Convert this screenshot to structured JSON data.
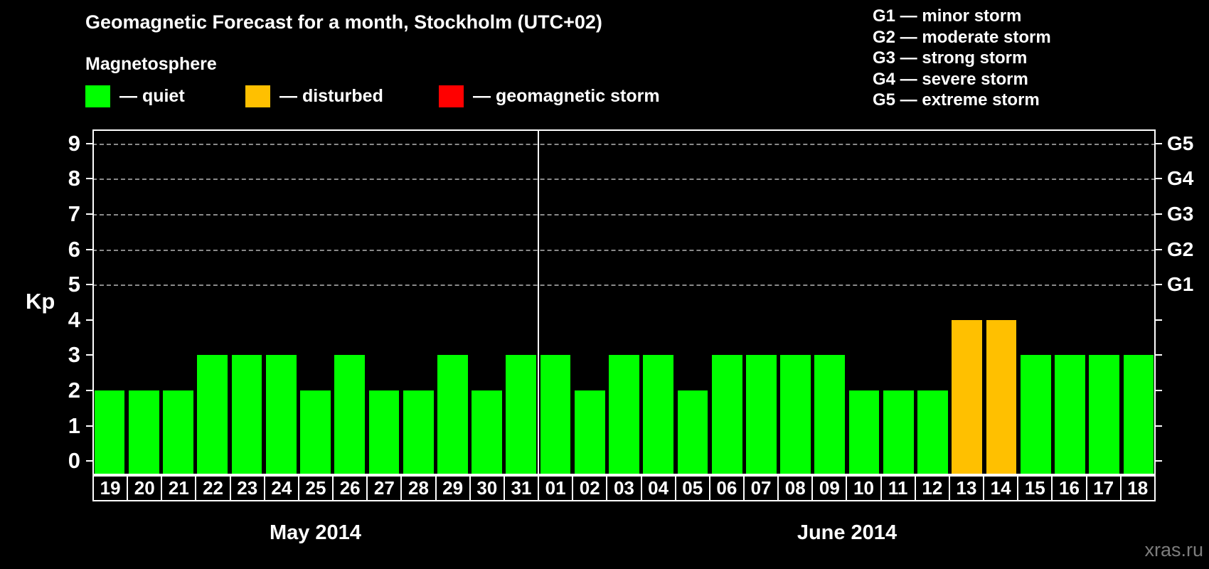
{
  "title": "Geomagnetic Forecast for a month, Stockholm (UTC+02)",
  "legend": {
    "heading": "Magnetosphere",
    "items": [
      {
        "id": "quiet",
        "label": "— quiet",
        "color": "#00FF00"
      },
      {
        "id": "disturbed",
        "label": "— disturbed",
        "color": "#FFC000"
      },
      {
        "id": "storm",
        "label": "— geomagnetic storm",
        "color": "#FF0000"
      }
    ]
  },
  "g_scale_legend": [
    "G1 — minor storm",
    "G2 — moderate storm",
    "G3 — strong storm",
    "G4 — severe storm",
    "G5 — extreme storm"
  ],
  "watermark": "xras.ru",
  "chart_data": {
    "type": "bar",
    "title": "Geomagnetic Forecast for a month, Stockholm (UTC+02)",
    "ylabel": "Kp",
    "ylim": [
      0,
      9
    ],
    "yticks": [
      0,
      1,
      2,
      3,
      4,
      5,
      6,
      7,
      8,
      9
    ],
    "gridlines_at": [
      5,
      6,
      7,
      8,
      9
    ],
    "grid": "dashed horizontal at Kp 5-9 only",
    "legend_position": "top",
    "right_axis": [
      {
        "kp": 5,
        "label": "G1"
      },
      {
        "kp": 6,
        "label": "G2"
      },
      {
        "kp": 7,
        "label": "G3"
      },
      {
        "kp": 8,
        "label": "G4"
      },
      {
        "kp": 9,
        "label": "G5"
      }
    ],
    "months": [
      {
        "label": "May 2014",
        "days": 13
      },
      {
        "label": "June 2014",
        "days": 18
      }
    ],
    "categories": [
      "19",
      "20",
      "21",
      "22",
      "23",
      "24",
      "25",
      "26",
      "27",
      "28",
      "29",
      "30",
      "31",
      "01",
      "02",
      "03",
      "04",
      "05",
      "06",
      "07",
      "08",
      "09",
      "10",
      "11",
      "12",
      "13",
      "14",
      "15",
      "16",
      "17",
      "18"
    ],
    "values": [
      2,
      2,
      2,
      3,
      3,
      3,
      2,
      3,
      2,
      2,
      3,
      2,
      3,
      3,
      2,
      3,
      3,
      2,
      3,
      3,
      3,
      3,
      2,
      2,
      2,
      4,
      4,
      3,
      3,
      3,
      3
    ],
    "statuses": [
      "quiet",
      "quiet",
      "quiet",
      "quiet",
      "quiet",
      "quiet",
      "quiet",
      "quiet",
      "quiet",
      "quiet",
      "quiet",
      "quiet",
      "quiet",
      "quiet",
      "quiet",
      "quiet",
      "quiet",
      "quiet",
      "quiet",
      "quiet",
      "quiet",
      "quiet",
      "quiet",
      "quiet",
      "quiet",
      "disturbed",
      "disturbed",
      "quiet",
      "quiet",
      "quiet",
      "quiet"
    ],
    "status_colors": {
      "quiet": "#00FF00",
      "disturbed": "#FFC000",
      "storm": "#FF0000"
    }
  }
}
